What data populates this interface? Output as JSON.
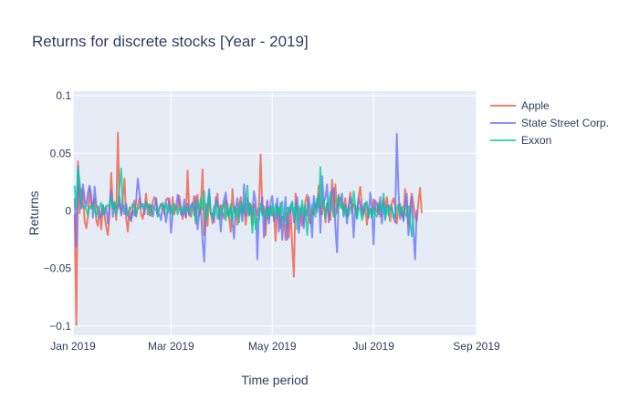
{
  "chart_data": {
    "type": "line",
    "title": "Returns for discrete stocks [Year - 2019]",
    "xlabel": "Time period",
    "ylabel": "Returns",
    "xlim": [
      "2019-01-01",
      "2019-09-01"
    ],
    "ylim": [
      -0.108,
      0.104
    ],
    "x_ticks": [
      "2019-01-01",
      "2019-03-01",
      "2019-05-01",
      "2019-07-01",
      "2019-09-01"
    ],
    "x_tick_labels": [
      "Jan 2019",
      "Mar 2019",
      "May 2019",
      "Jul 2019",
      "Sep 2019"
    ],
    "y_ticks": [
      -0.1,
      -0.05,
      0,
      0.05,
      0.1
    ],
    "y_tick_labels": [
      "−0.1",
      "−0.05",
      "0",
      "0.05",
      "0.1"
    ],
    "grid": true,
    "legend_position": "top-right",
    "x_start": "2019-01-02",
    "x_step_days": 1,
    "series": [
      {
        "name": "Apple",
        "color": "#EF553B",
        "values": [
          -0.003,
          -0.099,
          0.043,
          -0.002,
          0.019,
          0.017,
          -0.009,
          -0.015,
          -0.005,
          0.02,
          0.004,
          0.006,
          0.011,
          -0.008,
          -0.013,
          0.003,
          -0.016,
          0.005,
          -0.004,
          -0.014,
          -0.021,
          -0.002,
          0.033,
          0.002,
          0.006,
          -0.008,
          0.068,
          0.004,
          -0.002,
          0.012,
          0.028,
          -0.006,
          -0.018,
          0.003,
          -0.008,
          0.003,
          0.009,
          -0.005,
          0.004,
          0.011,
          -0.003,
          -0.007,
          0.002,
          0.015,
          -0.003,
          0.006,
          -0.004,
          0.008,
          0.012,
          0.01,
          -0.004,
          0.002,
          0.006,
          0.003,
          -0.003,
          0.01,
          0.011,
          0.006,
          -0.002,
          0.012,
          -0.003,
          0.004,
          0.001,
          0.013,
          0.003,
          -0.007,
          0.002,
          -0.006,
          0.035,
          -0.002,
          -0.005,
          0.005,
          0.013,
          -0.011,
          0.014,
          -0.004,
          0.005,
          0.036,
          -0.021,
          0.006,
          -0.013,
          0.014,
          -0.001,
          -0.011,
          0.004,
          0.004,
          0.015,
          -0.007,
          0.005,
          -0.002,
          -0.007,
          0.01,
          0.006,
          -0.006,
          -0.018,
          0.019,
          -0.001,
          0.003,
          -0.012,
          0.003,
          0.012,
          -0.002,
          0.005,
          -0.012,
          0.002,
          0.007,
          0.004,
          -0.012,
          0.006,
          0.003,
          -0.004,
          0.005,
          0.049,
          -0.002,
          0.004,
          -0.021,
          0.009,
          -0.007,
          0.004,
          -0.004,
          -0.001,
          -0.026,
          0.004,
          0.002,
          -0.015,
          -0.005,
          -0.005,
          -0.025,
          -0.002,
          -0.023,
          0.001,
          -0.03,
          -0.057,
          0.015,
          0.003,
          -0.008,
          0.002,
          -0.013,
          -0.006,
          0.009,
          0.014,
          -0.006,
          -0.011,
          0.002,
          -0.003,
          0.006,
          0.004,
          0.022,
          -0.002,
          -0.003,
          0.01,
          -0.01,
          0.007,
          -0.003,
          -0.008,
          0.027,
          -0.005,
          0.023,
          -0.002,
          0.012,
          0.011,
          0.002,
          0.001,
          0.011,
          -0.005,
          0.004,
          0.016,
          -0.002,
          0.006,
          0.004,
          -0.003,
          0.012,
          0.021,
          0.003,
          -0.003,
          0.004,
          -0.012,
          0.002,
          0.002,
          -0.006,
          0.01,
          0.002,
          -0.001,
          0.007,
          -0.005,
          0.003,
          0.011,
          0.002,
          0.012,
          0.001,
          -0.009,
          0.007,
          0.011,
          0.004,
          -0.011,
          0.003,
          0.006,
          -0.003,
          -0.007,
          0.019,
          0.001,
          -0.012,
          0.003,
          0.015,
          0.005,
          -0.004,
          -0.009,
          0.007,
          0.02,
          -0.002
        ]
      },
      {
        "name": "State Street Corp.",
        "color": "#636EFA",
        "values": [
          0.011,
          -0.031,
          0.039,
          0.013,
          0.002,
          0.023,
          0.01,
          0.004,
          0.016,
          0.022,
          0.013,
          -0.006,
          0.021,
          0.006,
          0.001,
          -0.006,
          -0.004,
          0.005,
          -0.003,
          0.004,
          -0.011,
          0.004,
          0.018,
          -0.005,
          0.007,
          0.003,
          0.003,
          0.012,
          -0.004,
          0.005,
          -0.003,
          0.006,
          -0.004,
          -0.005,
          -0.009,
          0.001,
          -0.004,
          0.008,
          0.028,
          0.016,
          0.003,
          0.006,
          -0.003,
          0.007,
          0.004,
          0.003,
          0.005,
          -0.005,
          0.003,
          0.011,
          -0.002,
          -0.003,
          -0.008,
          0.007,
          0.002,
          -0.01,
          0.001,
          0.011,
          -0.019,
          -0.003,
          0.003,
          0.002,
          0.014,
          0.007,
          -0.003,
          -0.004,
          0.01,
          -0.005,
          0.006,
          -0.004,
          0.005,
          0.007,
          -0.004,
          0.012,
          -0.016,
          -0.002,
          0.003,
          -0.025,
          -0.044,
          -0.003,
          0.005,
          0.019,
          -0.003,
          -0.002,
          -0.01,
          0.012,
          0.004,
          0.004,
          -0.018,
          0.002,
          0.01,
          0.016,
          -0.004,
          -0.002,
          0.003,
          -0.01,
          -0.024,
          0.003,
          0.011,
          -0.005,
          0.004,
          -0.009,
          0.023,
          -0.004,
          0.011,
          -0.004,
          0.006,
          -0.003,
          0.017,
          0.008,
          -0.042,
          0.002,
          0.001,
          0.012,
          -0.023,
          -0.004,
          0.008,
          -0.011,
          0.008,
          0.013,
          -0.009,
          -0.005,
          0.011,
          -0.018,
          0.007,
          -0.025,
          -0.007,
          0.012,
          -0.025,
          0.003,
          -0.001,
          0.008,
          -0.01,
          -0.003,
          0.012,
          -0.019,
          -0.008,
          0.005,
          -0.015,
          0.001,
          -0.004,
          0.012,
          -0.003,
          -0.023,
          0.013,
          0.004,
          -0.001,
          0.015,
          -0.019,
          0.03,
          0.007,
          0.012,
          0.023,
          -0.01,
          0.007,
          0.017,
          0.02,
          -0.014,
          -0.036,
          0.011,
          0.009,
          0.015,
          -0.004,
          0.005,
          -0.011,
          0.003,
          0.012,
          0.004,
          -0.023,
          0.005,
          -0.006,
          0.011,
          0.006,
          -0.004,
          0.004,
          0.007,
          0.005,
          -0.006,
          0.016,
          0.003,
          -0.029,
          0.009,
          0.006,
          -0.003,
          0.012,
          -0.011,
          0.006,
          -0.006,
          0.005,
          0.004,
          0.001,
          0.003,
          -0.005,
          -0.01,
          0.067,
          0.017,
          -0.007,
          0.002,
          -0.009,
          0.005,
          0.015,
          -0.021,
          -0.007,
          0.012,
          -0.017,
          -0.042,
          0.001
        ]
      },
      {
        "name": "Exxon",
        "color": "#00CC96",
        "values": [
          0.022,
          0.002,
          0.037,
          0.025,
          0.009,
          0.003,
          0.004,
          0.001,
          -0.004,
          0.004,
          0.002,
          0.006,
          0.001,
          -0.005,
          0.003,
          0.004,
          0.007,
          -0.003,
          0.002,
          0.004,
          0.005,
          0.003,
          0.012,
          0.003,
          0.008,
          -0.004,
          0.003,
          0.022,
          0.037,
          0.006,
          0.003,
          -0.002,
          -0.004,
          0.001,
          0.003,
          0.006,
          0.004,
          -0.004,
          0.002,
          0.003,
          0.006,
          0.004,
          0.002,
          0.008,
          0.005,
          -0.004,
          0.003,
          0.004,
          0.002,
          0.001,
          -0.005,
          0.003,
          0.006,
          0.004,
          0.001,
          0.007,
          -0.002,
          0.003,
          0.004,
          -0.004,
          0.006,
          0.003,
          -0.003,
          0.002,
          0.004,
          -0.002,
          0.004,
          0.001,
          0.002,
          -0.003,
          0.004,
          0.005,
          0.001,
          -0.01,
          0.008,
          0.002,
          0.011,
          0.001,
          0.017,
          -0.009,
          -0.001,
          0.015,
          -0.002,
          -0.006,
          0.003,
          0.006,
          -0.007,
          0.003,
          -0.004,
          0.004,
          0.007,
          -0.008,
          0.003,
          -0.006,
          0.006,
          -0.009,
          0.004,
          -0.003,
          0.002,
          -0.01,
          0.008,
          0.005,
          -0.002,
          0.006,
          0.022,
          -0.004,
          0.005,
          -0.019,
          0.002,
          -0.016,
          -0.007,
          -0.008,
          0.006,
          -0.004,
          -0.003,
          0.002,
          -0.007,
          0.003,
          -0.004,
          0.005,
          -0.003,
          0.006,
          -0.006,
          0.003,
          -0.003,
          0.008,
          -0.012,
          -0.004,
          0.003,
          -0.002,
          0.005,
          0.007,
          -0.004,
          0.006,
          -0.016,
          0.004,
          -0.003,
          0.009,
          -0.004,
          0.005,
          -0.021,
          -0.004,
          -0.004,
          0.006,
          0.003,
          -0.005,
          0.011,
          0.004,
          0.038,
          0.003,
          0.009,
          -0.006,
          0.007,
          0.005,
          0.016,
          0.002,
          -0.003,
          -0.005,
          0.006,
          0.014,
          0.003,
          0.007,
          -0.005,
          0.004,
          0.001,
          -0.004,
          0.003,
          0.002,
          0.017,
          0.004,
          -0.007,
          0.002,
          0.003,
          -0.008,
          -0.003,
          0.005,
          0.008,
          -0.004,
          0.002,
          -0.006,
          0.003,
          -0.003,
          -0.005,
          0.004,
          0.006,
          -0.001,
          0.015,
          -0.008,
          0.003,
          -0.004,
          0.005,
          0.003,
          -0.006,
          -0.004,
          0.002,
          0.006,
          -0.004,
          0.003,
          0.004,
          -0.002,
          -0.005,
          0.004,
          -0.009,
          -0.022,
          -0.004
        ]
      }
    ]
  }
}
